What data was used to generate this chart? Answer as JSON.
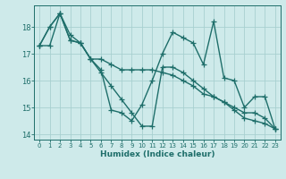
{
  "xlabel": "Humidex (Indice chaleur)",
  "background_color": "#ceeaea",
  "grid_color": "#a8d0d0",
  "line_color": "#1e6e6a",
  "x_values": [
    0,
    1,
    2,
    3,
    4,
    5,
    6,
    7,
    8,
    9,
    10,
    11,
    12,
    13,
    14,
    15,
    16,
    17,
    18,
    19,
    20,
    21,
    22,
    23
  ],
  "series1": [
    17.3,
    18.0,
    18.5,
    17.5,
    17.4,
    16.8,
    16.4,
    14.9,
    14.8,
    14.5,
    15.1,
    16.0,
    17.0,
    17.8,
    17.6,
    17.4,
    16.6,
    18.2,
    16.1,
    16.0,
    15.0,
    15.4,
    15.4,
    14.2
  ],
  "series2": [
    17.3,
    18.0,
    18.5,
    17.5,
    17.4,
    16.8,
    16.3,
    15.8,
    15.3,
    14.8,
    14.3,
    14.3,
    16.5,
    16.5,
    16.3,
    16.0,
    15.7,
    15.4,
    15.2,
    14.9,
    14.6,
    14.5,
    14.4,
    14.2
  ],
  "series3": [
    17.3,
    17.3,
    18.5,
    17.7,
    17.4,
    16.8,
    16.8,
    16.6,
    16.4,
    16.4,
    16.4,
    16.4,
    16.3,
    16.2,
    16.0,
    15.8,
    15.5,
    15.4,
    15.2,
    15.0,
    14.8,
    14.8,
    14.6,
    14.2
  ],
  "ylim": [
    13.8,
    18.8
  ],
  "xlim": [
    -0.5,
    23.5
  ],
  "yticks": [
    14,
    15,
    16,
    17,
    18
  ],
  "xticks": [
    0,
    1,
    2,
    3,
    4,
    5,
    6,
    7,
    8,
    9,
    10,
    11,
    12,
    13,
    14,
    15,
    16,
    17,
    18,
    19,
    20,
    21,
    22,
    23
  ],
  "linewidth": 1.0,
  "markersize": 4
}
